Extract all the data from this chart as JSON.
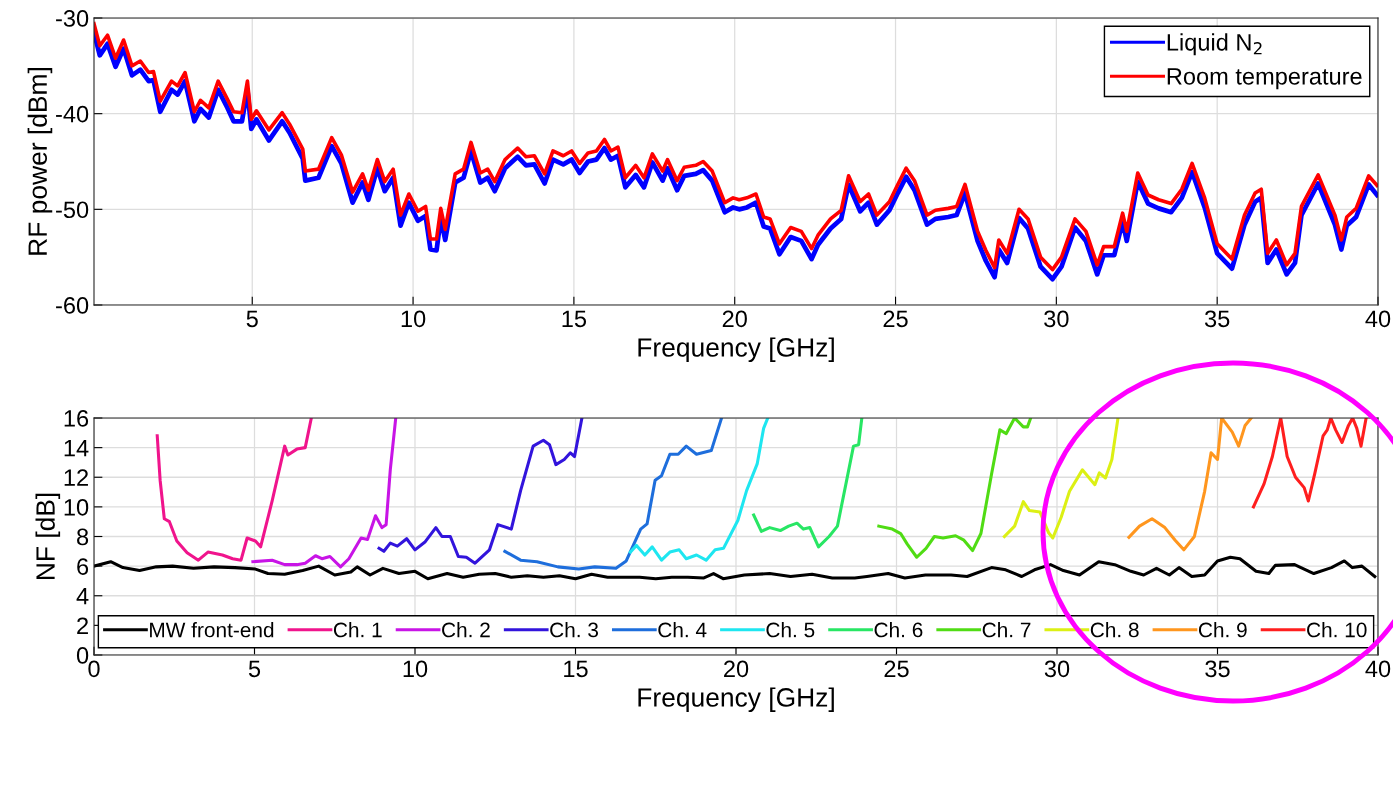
{
  "chart_data": [
    {
      "type": "line",
      "xlabel": "Frequency [GHz]",
      "ylabel": "RF power [dBm]",
      "xlim": [
        0.08,
        40
      ],
      "xticks": [
        5,
        10,
        15,
        20,
        25,
        30,
        35,
        40
      ],
      "ylim": [
        -60,
        -30
      ],
      "yticks": [
        -60,
        -50,
        -40,
        -30
      ],
      "grid": true,
      "legend": "top right",
      "marker": "none",
      "line_style": "solid",
      "x": [
        0.08,
        0.26,
        0.5,
        0.75,
        1.0,
        1.26,
        1.52,
        1.78,
        1.93,
        2.14,
        2.49,
        2.68,
        2.91,
        3.2,
        3.39,
        3.65,
        3.94,
        4.23,
        4.42,
        4.68,
        4.85,
        4.97,
        5.13,
        5.52,
        5.93,
        6.16,
        6.57,
        6.65,
        7.06,
        7.47,
        7.77,
        8.12,
        8.43,
        8.61,
        8.89,
        9.12,
        9.38,
        9.61,
        9.87,
        10.15,
        10.39,
        10.54,
        10.73,
        10.86,
        11.0,
        11.31,
        11.57,
        11.8,
        12.09,
        12.32,
        12.54,
        12.86,
        13.25,
        13.51,
        13.77,
        14.09,
        14.35,
        14.67,
        14.93,
        15.18,
        15.44,
        15.7,
        15.95,
        16.15,
        16.37,
        16.6,
        16.92,
        17.18,
        17.44,
        17.76,
        17.91,
        18.21,
        18.43,
        18.79,
        19.02,
        19.3,
        19.69,
        19.95,
        20.14,
        20.38,
        20.66,
        20.9,
        21.1,
        21.39,
        21.74,
        22.07,
        22.39,
        22.59,
        22.98,
        23.31,
        23.54,
        23.9,
        24.16,
        24.42,
        24.81,
        25.07,
        25.33,
        25.59,
        25.98,
        26.24,
        26.64,
        26.9,
        27.16,
        27.55,
        27.81,
        28.08,
        28.21,
        28.47,
        28.84,
        29.12,
        29.51,
        29.88,
        30.16,
        30.58,
        30.92,
        31.27,
        31.47,
        31.8,
        32.06,
        32.19,
        32.53,
        32.85,
        33.18,
        33.57,
        33.9,
        34.22,
        34.61,
        35.0,
        35.46,
        35.85,
        36.18,
        36.37,
        36.57,
        36.84,
        37.16,
        37.42,
        37.62,
        38.14,
        38.66,
        38.86,
        39.03,
        39.32,
        39.71,
        39.97
      ],
      "series": [
        {
          "name": "Liquid N$_{2}$",
          "color": "#0000ff",
          "values": [
            -31.5,
            -33.9,
            -32.7,
            -35.1,
            -33.2,
            -36.0,
            -35.4,
            -36.6,
            -36.5,
            -39.8,
            -37.5,
            -38.0,
            -36.6,
            -40.8,
            -39.5,
            -40.4,
            -37.5,
            -39.4,
            -40.8,
            -40.8,
            -37.5,
            -41.6,
            -40.6,
            -42.8,
            -40.8,
            -42.0,
            -44.7,
            -47.0,
            -46.7,
            -43.4,
            -45.2,
            -49.3,
            -47.2,
            -49.0,
            -45.7,
            -48.1,
            -46.7,
            -51.7,
            -49.3,
            -51.2,
            -50.7,
            -54.2,
            -54.3,
            -50.9,
            -53.2,
            -47.2,
            -46.7,
            -43.9,
            -47.2,
            -46.7,
            -48.1,
            -45.7,
            -44.5,
            -45.4,
            -45.3,
            -47.3,
            -44.8,
            -45.3,
            -44.8,
            -46.2,
            -45.0,
            -44.8,
            -43.6,
            -44.8,
            -44.4,
            -47.7,
            -46.4,
            -47.7,
            -45.1,
            -47.0,
            -45.7,
            -48.0,
            -46.5,
            -46.3,
            -45.9,
            -47.0,
            -50.3,
            -49.8,
            -50.0,
            -49.8,
            -49.3,
            -51.8,
            -52.0,
            -54.7,
            -52.9,
            -53.3,
            -55.2,
            -53.7,
            -52.0,
            -51.0,
            -47.4,
            -50.2,
            -49.3,
            -51.6,
            -50.1,
            -48.3,
            -46.6,
            -48.0,
            -51.6,
            -51.0,
            -50.8,
            -50.6,
            -48.3,
            -53.3,
            -55.4,
            -57.1,
            -54.2,
            -55.6,
            -50.9,
            -52.0,
            -56.0,
            -57.3,
            -56.0,
            -51.9,
            -53.3,
            -56.8,
            -54.8,
            -54.8,
            -51.3,
            -53.3,
            -47.1,
            -49.4,
            -49.9,
            -50.3,
            -48.8,
            -46.1,
            -49.8,
            -54.6,
            -56.2,
            -51.6,
            -49.2,
            -48.8,
            -55.6,
            -54.2,
            -56.8,
            -55.6,
            -50.6,
            -47.3,
            -51.6,
            -54.2,
            -51.7,
            -50.8,
            -47.4,
            -48.5
          ]
        },
        {
          "name": "Room temperature",
          "color": "#ff0000",
          "values": [
            -30.6,
            -32.9,
            -31.8,
            -34.2,
            -32.3,
            -35.0,
            -34.5,
            -35.7,
            -35.6,
            -38.7,
            -36.6,
            -37.1,
            -35.7,
            -39.8,
            -38.6,
            -39.4,
            -36.6,
            -38.5,
            -39.8,
            -39.9,
            -36.6,
            -40.6,
            -39.7,
            -41.7,
            -39.9,
            -41.1,
            -43.7,
            -46.0,
            -45.8,
            -42.5,
            -44.3,
            -48.2,
            -46.3,
            -48.0,
            -44.8,
            -47.1,
            -45.8,
            -50.6,
            -48.4,
            -50.2,
            -49.7,
            -53.1,
            -53.1,
            -49.9,
            -52.1,
            -46.3,
            -45.8,
            -43.0,
            -46.2,
            -45.8,
            -47.1,
            -44.8,
            -43.6,
            -44.5,
            -44.4,
            -46.3,
            -43.9,
            -44.4,
            -43.9,
            -45.2,
            -44.1,
            -43.9,
            -42.7,
            -43.9,
            -43.5,
            -46.7,
            -45.4,
            -46.7,
            -44.2,
            -46.0,
            -44.8,
            -47.0,
            -45.6,
            -45.4,
            -45.0,
            -46.0,
            -49.3,
            -48.8,
            -49.0,
            -48.8,
            -48.4,
            -50.8,
            -51.0,
            -53.6,
            -51.9,
            -52.3,
            -54.1,
            -52.7,
            -51.0,
            -50.1,
            -46.5,
            -49.2,
            -48.4,
            -50.6,
            -49.2,
            -47.4,
            -45.7,
            -47.0,
            -50.6,
            -50.1,
            -49.9,
            -49.7,
            -47.4,
            -52.3,
            -54.3,
            -56.1,
            -53.2,
            -54.6,
            -50.0,
            -51.0,
            -55.0,
            -56.3,
            -55.0,
            -51.0,
            -52.3,
            -55.8,
            -53.9,
            -53.9,
            -50.4,
            -52.3,
            -46.2,
            -48.5,
            -49.0,
            -49.4,
            -47.9,
            -45.2,
            -48.8,
            -53.6,
            -55.2,
            -50.6,
            -48.3,
            -47.9,
            -54.6,
            -53.2,
            -55.8,
            -54.6,
            -49.7,
            -46.4,
            -50.6,
            -53.2,
            -50.8,
            -49.9,
            -46.5,
            -47.5
          ]
        }
      ]
    },
    {
      "type": "line",
      "xlabel": "Frequency [GHz]",
      "ylabel": "NF [dB]",
      "xlim": [
        0,
        40
      ],
      "xticks": [
        0,
        5,
        10,
        15,
        20,
        25,
        30,
        35,
        40
      ],
      "ylim": [
        0,
        16
      ],
      "yticks": [
        0,
        2,
        4,
        6,
        8,
        10,
        12,
        14,
        16
      ],
      "grid": true,
      "legend": "bottom",
      "marker": "none",
      "line_style": "solid",
      "series": [
        {
          "name": "MW front-end",
          "color": "#000000",
          "x": [
            0,
            0.52,
            0.9,
            1.42,
            1.94,
            2.45,
            3.1,
            3.74,
            4.39,
            5.03,
            5.42,
            5.94,
            6.5,
            7.0,
            7.5,
            8.0,
            8.2,
            8.6,
            9.0,
            9.5,
            10.0,
            10.4,
            11,
            11.5,
            12,
            12.5,
            13,
            13.5,
            14,
            14.5,
            15,
            15.5,
            16,
            16.5,
            17,
            17.5,
            18,
            18.5,
            19,
            19.3,
            19.6,
            20.26,
            21.05,
            21.7,
            22.37,
            23.0,
            23.7,
            24.08,
            24.74,
            25.26,
            25.9,
            26.7,
            27.2,
            27.96,
            28.4,
            28.9,
            29.3,
            29.8,
            30.2,
            30.7,
            31.3,
            31.8,
            32.3,
            32.7,
            33.1,
            33.5,
            33.8,
            34.2,
            34.6,
            35.0,
            35.4,
            35.7,
            36.2,
            36.6,
            36.8,
            37.4,
            37.6,
            38.0,
            38.55,
            38.95,
            39.2,
            39.5,
            39.9
          ],
          "values": [
            6.0,
            6.3,
            5.9,
            5.7,
            5.95,
            6.0,
            5.85,
            5.95,
            5.9,
            5.8,
            5.5,
            5.45,
            5.7,
            6.0,
            5.4,
            5.6,
            5.95,
            5.4,
            5.85,
            5.5,
            5.65,
            5.15,
            5.5,
            5.25,
            5.45,
            5.5,
            5.25,
            5.35,
            5.25,
            5.35,
            5.15,
            5.45,
            5.25,
            5.25,
            5.25,
            5.15,
            5.25,
            5.25,
            5.2,
            5.5,
            5.15,
            5.4,
            5.5,
            5.3,
            5.45,
            5.2,
            5.2,
            5.3,
            5.5,
            5.2,
            5.4,
            5.4,
            5.3,
            5.9,
            5.75,
            5.3,
            5.75,
            6.1,
            5.7,
            5.4,
            6.3,
            6.1,
            5.65,
            5.4,
            5.85,
            5.4,
            5.9,
            5.3,
            5.4,
            6.35,
            6.6,
            6.5,
            5.65,
            5.5,
            6.05,
            6.1,
            5.9,
            5.5,
            5.9,
            6.35,
            5.9,
            6.0,
            5.3
          ]
        },
        {
          "name": "Ch. 1",
          "color": "#f0148c",
          "x": [
            1.97,
            2.06,
            2.19,
            2.35,
            2.58,
            2.9,
            3.25,
            3.55,
            4.0,
            4.32,
            4.58,
            4.77,
            5.03,
            5.19,
            5.55,
            5.94,
            6.04,
            6.32,
            6.58,
            6.77
          ],
          "values": [
            14.8,
            11.8,
            9.2,
            9.0,
            7.7,
            6.9,
            6.4,
            6.95,
            6.75,
            6.5,
            6.4,
            7.9,
            7.7,
            7.3,
            10.4,
            14.1,
            13.5,
            13.9,
            14.0,
            16.0
          ]
        },
        {
          "name": "Ch. 2",
          "color": "#c814e6",
          "x": [
            4.95,
            5.55,
            5.94,
            6.32,
            6.58,
            6.9,
            7.1,
            7.35,
            7.68,
            7.94,
            8.32,
            8.52,
            8.77,
            8.97,
            9.1,
            9.23,
            9.4
          ],
          "values": [
            6.3,
            6.4,
            6.1,
            6.1,
            6.2,
            6.7,
            6.5,
            6.65,
            5.95,
            6.5,
            7.9,
            7.8,
            9.4,
            8.6,
            8.8,
            12.5,
            16.0
          ]
        },
        {
          "name": "Ch. 3",
          "color": "#3214dc",
          "x": [
            8.88,
            9.03,
            9.23,
            9.45,
            9.74,
            10.0,
            10.32,
            10.65,
            10.84,
            11.1,
            11.35,
            11.6,
            11.87,
            12.32,
            12.58,
            13.0,
            13.29,
            13.68,
            14.0,
            14.19,
            14.39,
            14.65,
            14.84,
            14.97,
            15.2
          ],
          "values": [
            7.2,
            7.0,
            7.55,
            7.35,
            7.85,
            7.1,
            7.65,
            8.6,
            8.0,
            8.0,
            6.65,
            6.6,
            6.2,
            7.1,
            8.8,
            8.5,
            11.1,
            14.1,
            14.5,
            14.2,
            12.85,
            13.2,
            13.65,
            13.4,
            16.0
          ]
        },
        {
          "name": "Ch. 4",
          "color": "#1e6edc",
          "x": [
            12.8,
            13.29,
            13.8,
            14.45,
            15.1,
            15.6,
            16.26,
            16.58,
            17.03,
            17.23,
            17.48,
            17.68,
            17.94,
            18.2,
            18.45,
            18.77,
            19.23,
            19.55
          ],
          "values": [
            7.0,
            6.4,
            6.3,
            5.95,
            5.8,
            5.95,
            5.85,
            6.35,
            8.5,
            8.85,
            11.8,
            12.1,
            13.55,
            13.55,
            14.1,
            13.55,
            13.8,
            16.0
          ]
        },
        {
          "name": "Ch. 5",
          "color": "#1ee6f0",
          "x": [
            16.71,
            16.9,
            17.16,
            17.39,
            17.68,
            17.94,
            18.23,
            18.45,
            18.77,
            19.07,
            19.35,
            19.61,
            20.06,
            20.33,
            20.66,
            20.86,
            20.99
          ],
          "values": [
            6.95,
            7.4,
            6.75,
            7.3,
            6.4,
            6.95,
            7.1,
            6.5,
            6.75,
            6.4,
            7.1,
            7.2,
            9.1,
            11.1,
            12.9,
            15.3,
            16.0
          ]
        },
        {
          "name": "Ch. 6",
          "color": "#28e664",
          "x": [
            20.55,
            20.79,
            21.05,
            21.38,
            21.64,
            21.9,
            22.1,
            22.3,
            22.57,
            22.9,
            23.16,
            23.42,
            23.66,
            23.82,
            23.92
          ],
          "values": [
            9.45,
            8.35,
            8.6,
            8.4,
            8.7,
            8.9,
            8.5,
            8.6,
            7.3,
            8.0,
            8.7,
            11.5,
            14.1,
            14.2,
            16.0
          ]
        },
        {
          "name": "Ch. 7",
          "color": "#50dc14",
          "x": [
            24.45,
            24.87,
            25.13,
            25.33,
            25.63,
            25.92,
            26.18,
            26.45,
            26.84,
            27.1,
            27.37,
            27.63,
            27.96,
            28.22,
            28.42,
            28.68,
            28.95,
            29.08,
            29.18
          ],
          "values": [
            8.7,
            8.5,
            8.2,
            7.5,
            6.6,
            7.2,
            8.0,
            7.9,
            8.05,
            7.75,
            7.05,
            8.2,
            12.2,
            15.2,
            14.95,
            16.0,
            15.4,
            15.4,
            16.0
          ]
        },
        {
          "name": "Ch. 8",
          "color": "#dcf014",
          "x": [
            28.36,
            28.68,
            28.95,
            29.14,
            29.47,
            29.74,
            29.87,
            30.13,
            30.39,
            30.79,
            31.18,
            31.32,
            31.51,
            31.71,
            31.9
          ],
          "values": [
            8.0,
            8.7,
            10.35,
            9.75,
            9.65,
            8.25,
            7.9,
            9.3,
            11.05,
            12.5,
            11.5,
            12.3,
            11.95,
            13.2,
            16.0
          ]
        },
        {
          "name": "Ch. 9",
          "color": "#ff961e",
          "x": [
            32.24,
            32.57,
            32.96,
            33.36,
            33.68,
            33.95,
            34.28,
            34.6,
            34.8,
            35.0,
            35.13,
            35.46,
            35.66,
            35.86,
            36.05
          ],
          "values": [
            7.95,
            8.7,
            9.2,
            8.6,
            7.75,
            7.1,
            8.0,
            11.05,
            13.65,
            13.2,
            16.0,
            15.05,
            14.1,
            15.5,
            16.0
          ]
        },
        {
          "name": "Ch. 10",
          "color": "#ff1e1e",
          "x": [
            36.12,
            36.45,
            36.71,
            36.97,
            37.17,
            37.43,
            37.7,
            37.83,
            38.03,
            38.29,
            38.42,
            38.53,
            38.68,
            38.88,
            39.08,
            39.21,
            39.34,
            39.47,
            39.63
          ],
          "values": [
            10.0,
            11.55,
            13.4,
            16.0,
            13.4,
            12.0,
            11.3,
            10.4,
            12.25,
            14.8,
            15.2,
            16.0,
            15.2,
            14.35,
            15.5,
            16.0,
            15.3,
            14.1,
            16.0
          ]
        }
      ]
    }
  ]
}
